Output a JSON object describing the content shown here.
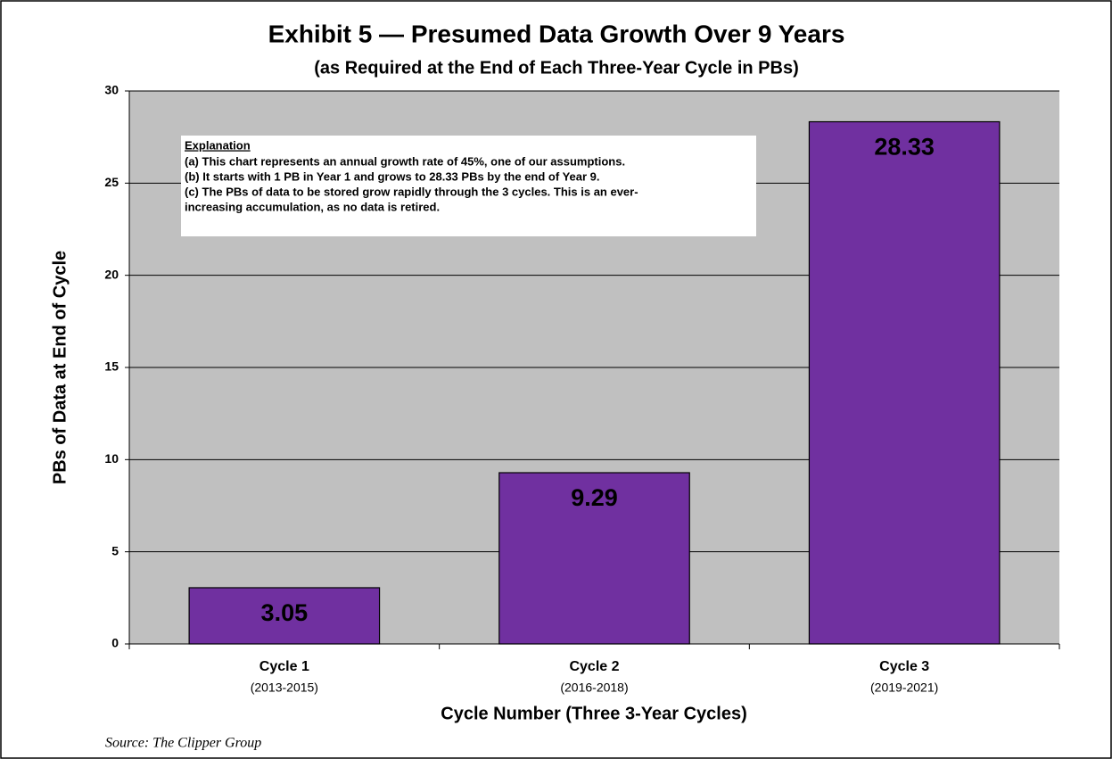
{
  "chart_data": {
    "type": "bar",
    "title": "Exhibit 5 — Presumed Data Growth Over 9 Years",
    "subtitle": "(as Required at the End of Each Three-Year Cycle in PBs)",
    "categories": [
      "Cycle 1",
      "Cycle 2",
      "Cycle 3"
    ],
    "category_sublabels": [
      "(2013-2015)",
      "(2016-2018)",
      "(2019-2021)"
    ],
    "values": [
      3.05,
      9.29,
      28.33
    ],
    "color": "#7030a0",
    "ylim": [
      0,
      30
    ],
    "yticks": [
      0,
      5,
      10,
      15,
      20,
      25,
      30
    ],
    "grid": true,
    "y_label": "PBs of Data at End of Cycle",
    "x_label": "Cycle Number (Three 3-Year Cycles)",
    "annotation": {
      "heading": "Explanation",
      "lines": [
        "(a) This chart represents an annual growth rate of 45%, one of our assumptions.",
        "(b) It starts with 1 PB in Year 1 and grows to 28.33 PBs by the end of Year 9.",
        "(c) The PBs of data to be stored grow rapidly through the 3 cycles. This is an ever-",
        "increasing accumulation, as no data is retired."
      ]
    },
    "source": "Source:  The Clipper Group"
  }
}
